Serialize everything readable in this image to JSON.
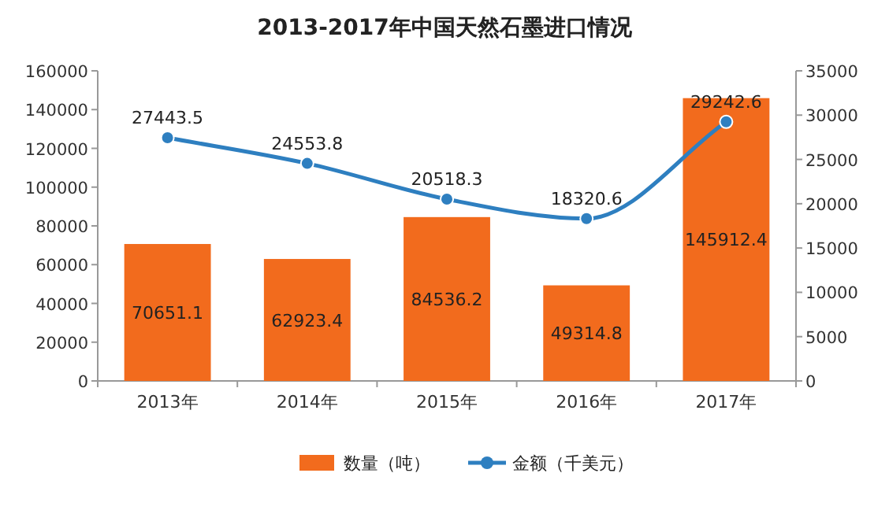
{
  "chart_data": {
    "type": "bar",
    "title": "2013-2017年中国天然石墨进口情况",
    "categories": [
      "2013年",
      "2014年",
      "2015年",
      "2016年",
      "2017年"
    ],
    "series": [
      {
        "name": "数量（吨）",
        "color": "#f26b1d",
        "values": [
          70651.1,
          62923.4,
          84536.2,
          49314.8,
          145912.4
        ]
      },
      {
        "name": "金额（千美元）",
        "type": "line",
        "axis": "y2",
        "color": "#2e7fc0",
        "marker": "circle",
        "values": [
          27443.5,
          24553.8,
          20518.3,
          18320.6,
          29242.6
        ]
      }
    ],
    "ylim": [
      0,
      160000
    ],
    "yticks": [
      0,
      20000,
      40000,
      60000,
      80000,
      100000,
      120000,
      140000,
      160000
    ],
    "y2lim": [
      0,
      35000
    ],
    "y2ticks": [
      0,
      5000,
      10000,
      15000,
      20000,
      25000,
      30000,
      35000
    ],
    "data_labels": true,
    "legend": "bottom",
    "grid": false
  }
}
